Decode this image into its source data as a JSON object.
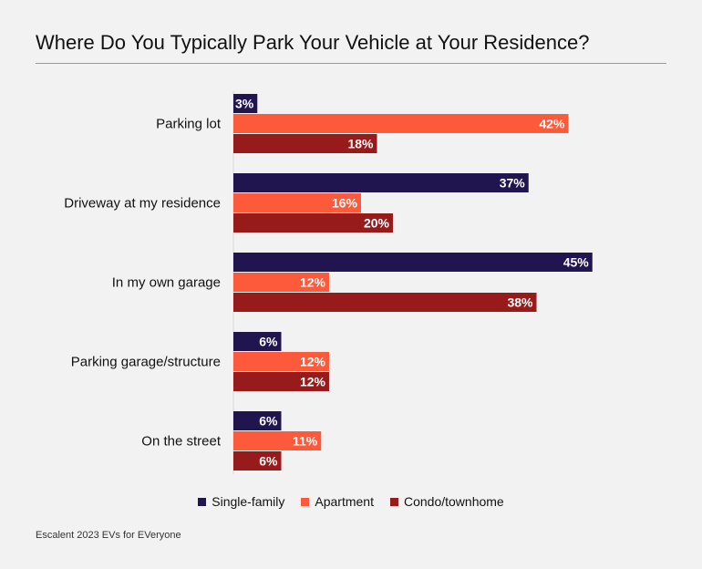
{
  "title": "Where Do You Typically Park Your Vehicle at Your Residence?",
  "source": "Escalent 2023 EVs for EVeryone",
  "chart_data": {
    "type": "bar",
    "orientation": "horizontal",
    "categories": [
      "Parking lot",
      "Driveway at my residence",
      "In my own garage",
      "Parking garage/structure",
      "On the street"
    ],
    "series": [
      {
        "name": "Single-family",
        "color": "#21154f",
        "values": [
          3,
          37,
          45,
          6,
          6
        ]
      },
      {
        "name": "Apartment",
        "color": "#fd5a3c",
        "values": [
          42,
          16,
          12,
          12,
          11
        ]
      },
      {
        "name": "Condo/townhome",
        "color": "#971b1b",
        "values": [
          18,
          20,
          38,
          12,
          6
        ]
      }
    ],
    "value_suffix": "%",
    "xlim": [
      0,
      50
    ],
    "grid": false,
    "legend_position": "bottom"
  }
}
